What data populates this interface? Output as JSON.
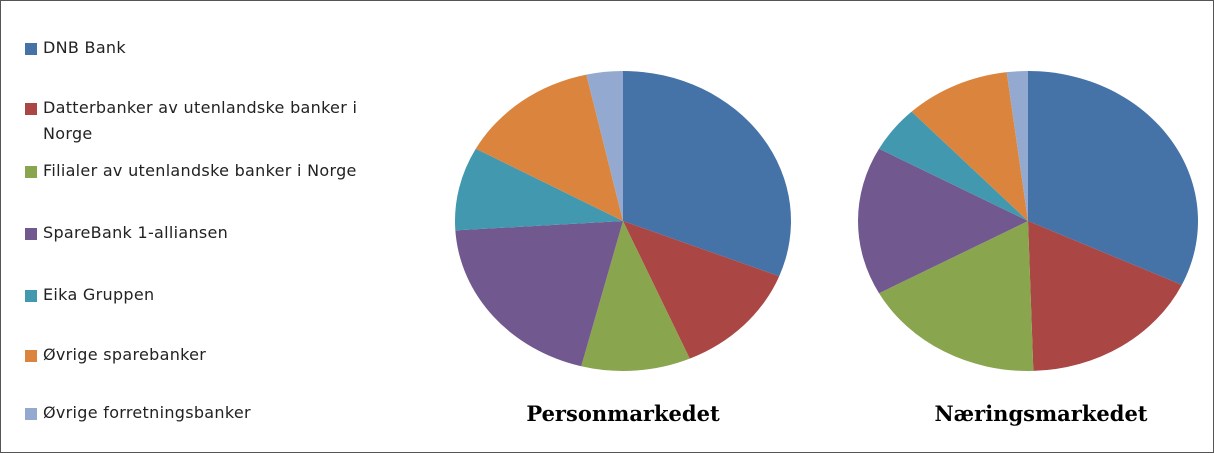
{
  "legend": {
    "labels": [
      "DNB Bank",
      "Datterbanker av utenlandske banker i Norge",
      "Filialer av utenlandske banker i Norge",
      "SpareBank 1-alliansen",
      "Eika Gruppen",
      "Øvrige sparebanker",
      "Øvrige forretningsbanker"
    ],
    "colors": [
      "#4572a7",
      "#aa4643",
      "#89a54e",
      "#71588f",
      "#4198af",
      "#db843d",
      "#93a9cf"
    ]
  },
  "chart_data": [
    {
      "type": "pie",
      "title": "Personmarkedet",
      "values": [
        31,
        12.5,
        10.5,
        20,
        9,
        13.5,
        3.5
      ]
    },
    {
      "type": "pie",
      "title": "Næringsmarkedet",
      "values": [
        32,
        17.5,
        17.5,
        16,
        5,
        10,
        2
      ]
    }
  ]
}
